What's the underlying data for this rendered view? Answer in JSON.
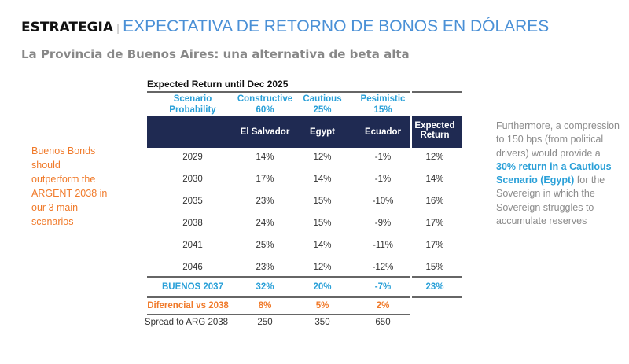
{
  "header": {
    "section": "ESTRATEGIA",
    "separator": "|",
    "title": "EXPECTATIVA DE RETORNO DE BONOS EN DÓLARES",
    "subtitle": "La Provincia de Buenos Aires: una alternativa de beta alta"
  },
  "left_note": "Buenos Bonds should outperform the ARGENT 2038 in our 3 main scenarios",
  "right_note": {
    "pre": "Furthermore, a compression to 150 bps (from political drivers) would provide a ",
    "highlight": "30% return in a Cautious Scenario (Egypt)",
    "post": " for the Sovereign in which the Sovereign struggles to accumulate reserves"
  },
  "table": {
    "caption": "Expected Return until Dec 2025",
    "prob_label": [
      "Scenario",
      "Probability"
    ],
    "scenarios": [
      {
        "name": "Constructive",
        "prob": "60%"
      },
      {
        "name": "Cautious",
        "prob": "25%"
      },
      {
        "name": "Pesimistic",
        "prob": "15%"
      }
    ],
    "columns": [
      "El Salvador",
      "Egypt",
      "Ecuador"
    ],
    "expected_header": [
      "Expected",
      "Return"
    ],
    "rows": [
      [
        "2029",
        "14%",
        "12%",
        "-1%",
        "12%"
      ],
      [
        "2030",
        "17%",
        "14%",
        "-1%",
        "14%"
      ],
      [
        "2035",
        "23%",
        "15%",
        "-10%",
        "16%"
      ],
      [
        "2038",
        "24%",
        "15%",
        "-9%",
        "17%"
      ],
      [
        "2041",
        "25%",
        "14%",
        "-11%",
        "17%"
      ],
      [
        "2046",
        "23%",
        "12%",
        "-12%",
        "15%"
      ]
    ],
    "buenos": [
      "BUENOS 2037",
      "32%",
      "20%",
      "-7%",
      "23%"
    ],
    "diferencial": [
      "Diferencial vs 2038",
      "8%",
      "5%",
      "2%"
    ],
    "spread": [
      "Spread to ARG 2038",
      "250",
      "350",
      "650"
    ]
  },
  "colors": {
    "navy": "#1f2a52",
    "blue": "#2aa0d8",
    "orange": "#f07a2a",
    "title_blue": "#4a90d6"
  }
}
